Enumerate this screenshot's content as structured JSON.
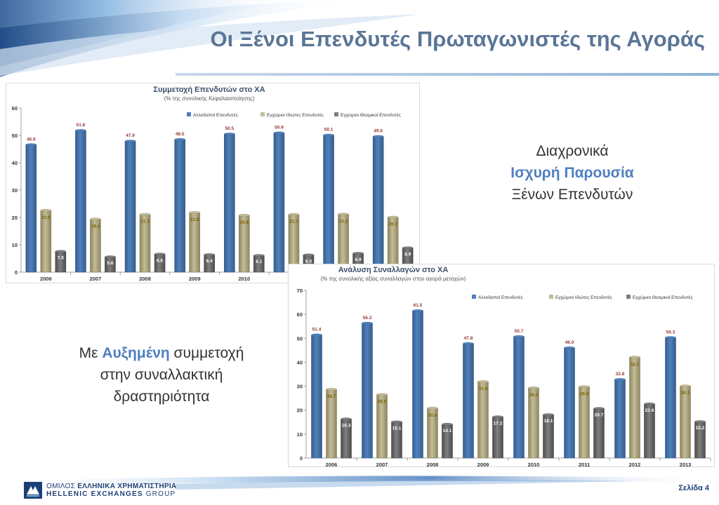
{
  "header": {
    "title": "Οι Ξένοι Επενδυτές Πρωταγωνιστές της Αγοράς"
  },
  "side_text_1": {
    "line1": "Διαχρονικά",
    "line2": "Ισχυρή Παρουσία",
    "line3": "Ξένων Επενδυτών"
  },
  "side_text_2": {
    "prefix": "Με ",
    "highlight": "Αυξημένη",
    "suffix": " συμμετοχή",
    "line2": "στην συναλλακτική",
    "line3": "δραστηριότητα"
  },
  "footer": {
    "logo_gr_a": "ΟΜΙΛΟΣ ",
    "logo_gr_b": "ΕΛΛΗΝΙΚΑ ΧΡΗΜΑΤΙΣΤΗΡΙΑ",
    "logo_en_a": "HELLENIC EXCHANGES ",
    "logo_en_b": "GROUP",
    "page": "Σελίδα 4"
  },
  "colors": {
    "series1": "#4f81bd",
    "series2": "#c4bd97",
    "series3": "#7f7f7f",
    "title": "#5a7596",
    "label1": "#953735"
  },
  "chart_data": [
    {
      "type": "bar",
      "title": "Συμμετοχή Επενδυτών στο ΧΑ",
      "subtitle": "(% της συνολικής Κεφαλαιοποίησης)",
      "categories": [
        "2006",
        "2007",
        "2008",
        "2009",
        "2010",
        "2011",
        "2012",
        "2013"
      ],
      "ylim": [
        0,
        60
      ],
      "yticks": [
        0,
        10,
        20,
        30,
        40,
        50,
        60
      ],
      "legend_position": "top-right",
      "series": [
        {
          "name": "Αλλοδαποί Επενδυτές",
          "values": [
            46.6,
            51.8,
            47.9,
            48.5,
            50.5,
            50.9,
            50.1,
            49.6
          ]
        },
        {
          "name": "Εγχώριοι Ιδιώτες Επενδυτές",
          "values": [
            22.6,
            19.4,
            21.1,
            21.8,
            20.8,
            21.1,
            21.2,
            20.1
          ]
        },
        {
          "name": "Εγχώριοι Θεσμικοί Επενδυτές",
          "values": [
            7.6,
            5.6,
            6.6,
            6.4,
            6.1,
            6.3,
            6.9,
            8.9
          ]
        }
      ]
    },
    {
      "type": "bar",
      "title": "Ανάλυση Συναλλαγών στο ΧΑ",
      "subtitle": "(% της συνολικής αξίας συναλλαγών στην αγορά μετοχών)",
      "categories": [
        "2006",
        "2007",
        "2008",
        "2009",
        "2010",
        "2011",
        "2012",
        "2013"
      ],
      "ylim": [
        0,
        70
      ],
      "yticks": [
        0,
        10,
        20,
        30,
        40,
        50,
        60,
        70
      ],
      "legend_position": "top-right",
      "series": [
        {
          "name": "Αλλοδαποί Επενδυτές",
          "values": [
            51.4,
            56.3,
            61.5,
            47.8,
            50.7,
            46.0,
            32.8,
            50.3
          ]
        },
        {
          "name": "Εγχώριοι Ιδιώτες Επενδυτές",
          "values": [
            28.7,
            26.5,
            20.8,
            31.9,
            29.3,
            29.8,
            42.1,
            30.1
          ]
        },
        {
          "name": "Εγχώριοι Θεσμικοί Επενδυτές",
          "values": [
            16.3,
            15.1,
            14.1,
            17.2,
            18.1,
            20.7,
            22.6,
            15.2
          ]
        }
      ]
    }
  ]
}
